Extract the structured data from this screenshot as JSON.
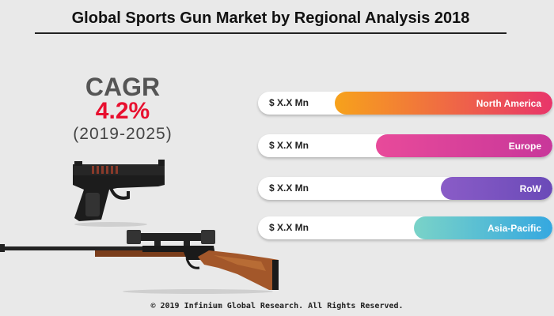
{
  "title": "Global Sports Gun Market by Regional Analysis 2018",
  "cagr": {
    "label": "CAGR",
    "value": "4.2%",
    "period": "(2019-2025)",
    "value_color": "#e8102f"
  },
  "chart_data": {
    "type": "bar",
    "orientation": "horizontal",
    "categories": [
      "North America",
      "Europe",
      "RoW",
      "Asia-Pacific"
    ],
    "value_labels": [
      "$ X.X Mn",
      "$ X.X Mn",
      "$ X.X Mn",
      "$ X.X Mn"
    ],
    "relative_bar_fill": [
      0.74,
      0.6,
      0.38,
      0.47
    ],
    "colors": [
      [
        "#f7a21b",
        "#e8356a"
      ],
      [
        "#e84a9a",
        "#c8379a"
      ],
      [
        "#8a5cc7",
        "#6a4ab8"
      ],
      [
        "#7ad3c8",
        "#35a8e0"
      ]
    ]
  },
  "icons": [
    "pistol-icon",
    "rifle-icon"
  ],
  "footer": "© 2019 Infinium Global Research. All Rights Reserved."
}
